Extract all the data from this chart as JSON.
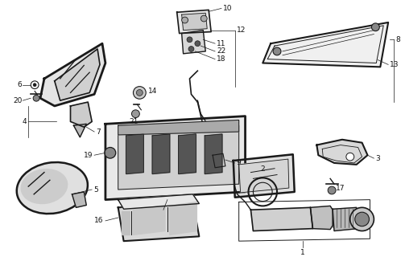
{
  "bg_color": "#ffffff",
  "fig_width": 4.98,
  "fig_height": 3.2,
  "dpi": 100,
  "line_color": "#1a1a1a",
  "label_fontsize": 6.5,
  "label_color": "#111111"
}
